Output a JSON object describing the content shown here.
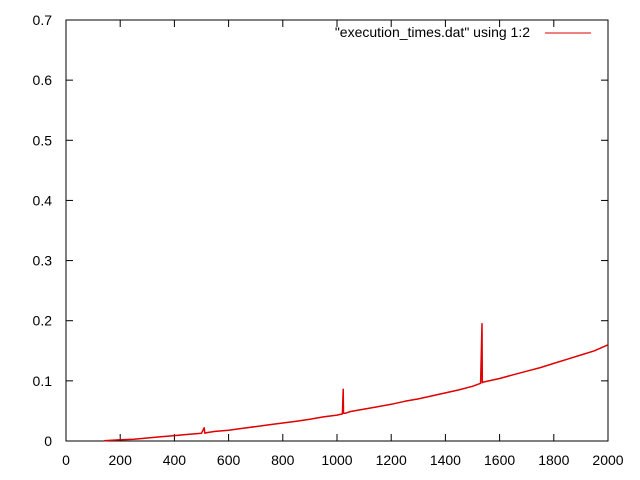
{
  "chart_data": {
    "type": "line",
    "title": "",
    "xlabel": "",
    "ylabel": "",
    "xlim": [
      0,
      2000
    ],
    "ylim": [
      0,
      0.7
    ],
    "x_ticks": [
      0,
      200,
      400,
      600,
      800,
      1000,
      1200,
      1400,
      1600,
      1800,
      2000
    ],
    "x_tick_labels": [
      "0",
      "200",
      "400",
      "600",
      "800",
      "1000",
      "1200",
      "1400",
      "1600",
      "1800",
      "2000"
    ],
    "y_ticks": [
      0,
      0.1,
      0.2,
      0.3,
      0.4,
      0.5,
      0.6,
      0.7
    ],
    "y_tick_labels": [
      "0",
      "0.1",
      "0.2",
      "0.3",
      "0.4",
      "0.5",
      "0.6",
      "0.7"
    ],
    "grid": false,
    "legend_position": "top-right",
    "series": [
      {
        "name": "\"execution_times.dat\" using 1:2",
        "color": "#e00000",
        "x": [
          140,
          200,
          250,
          300,
          350,
          400,
          450,
          500,
          510,
          512,
          520,
          550,
          600,
          650,
          700,
          750,
          800,
          850,
          900,
          950,
          1000,
          1020,
          1023,
          1024,
          1030,
          1050,
          1100,
          1150,
          1200,
          1250,
          1300,
          1350,
          1400,
          1450,
          1500,
          1530,
          1535,
          1536,
          1540,
          1560,
          1600,
          1650,
          1700,
          1750,
          1800,
          1850,
          1900,
          1950,
          2000
        ],
        "y": [
          0.0005,
          0.002,
          0.003,
          0.005,
          0.007,
          0.009,
          0.011,
          0.013,
          0.022,
          0.013,
          0.014,
          0.016,
          0.018,
          0.021,
          0.024,
          0.027,
          0.03,
          0.033,
          0.036,
          0.04,
          0.043,
          0.045,
          0.086,
          0.046,
          0.046,
          0.049,
          0.053,
          0.057,
          0.061,
          0.066,
          0.07,
          0.075,
          0.08,
          0.085,
          0.091,
          0.096,
          0.195,
          0.097,
          0.098,
          0.1,
          0.104,
          0.11,
          0.116,
          0.122,
          0.129,
          0.136,
          0.143,
          0.15,
          0.16
        ]
      }
    ]
  }
}
